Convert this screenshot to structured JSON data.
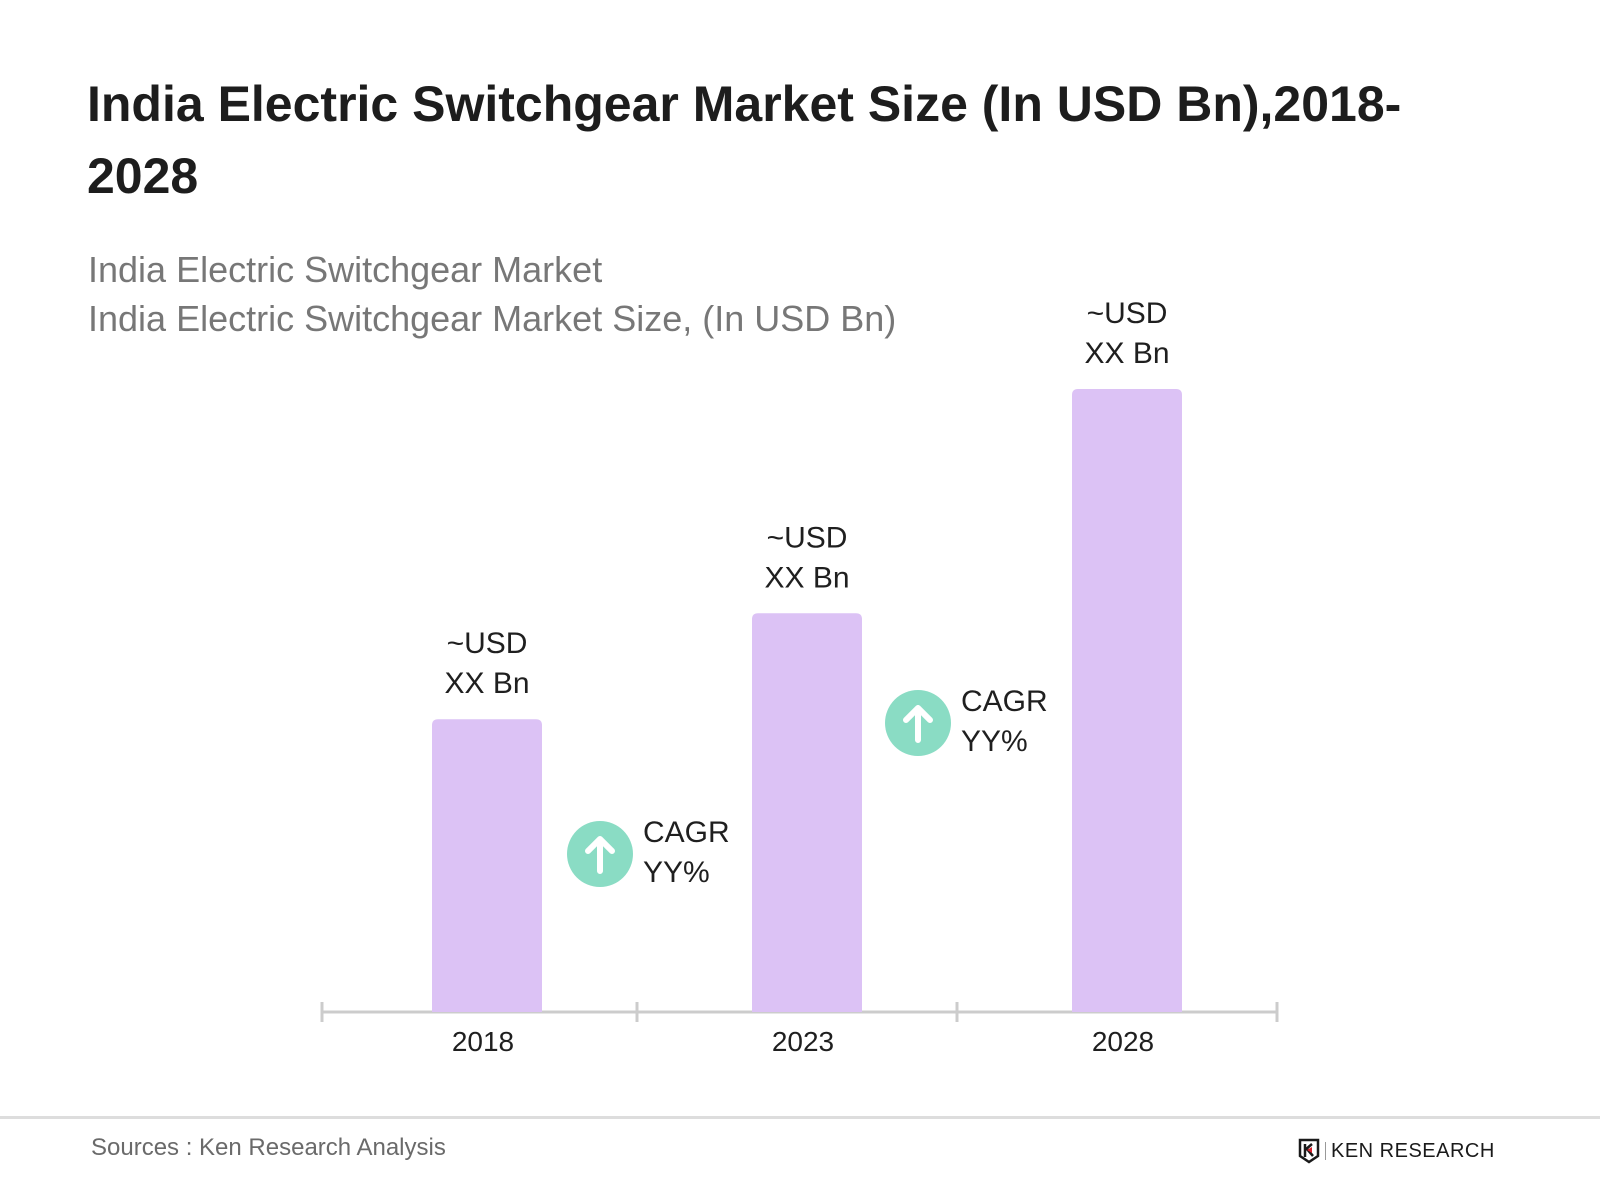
{
  "chart_data": {
    "type": "bar",
    "title": "India Electric Switchgear Market Size (In USD Bn),2018-2028",
    "subtitle_lines": [
      "India Electric Switchgear Market",
      "India Electric Switchgear Market Size, (In USD Bn)"
    ],
    "categories": [
      "2018",
      "2023",
      "2028"
    ],
    "relative_values": [
      0.47,
      0.64,
      1.0
    ],
    "data_labels": [
      [
        "~USD",
        "XX Bn"
      ],
      [
        "~USD",
        "XX Bn"
      ],
      [
        "~USD",
        "XX Bn"
      ]
    ],
    "annotations": [
      {
        "between": [
          "2018",
          "2023"
        ],
        "lines": [
          "CAGR",
          "YY%"
        ],
        "icon": "arrow-up-circle-icon"
      },
      {
        "between": [
          "2023",
          "2028"
        ],
        "lines": [
          "CAGR",
          "YY%"
        ],
        "icon": "arrow-up-circle-icon"
      }
    ],
    "xlabel": "",
    "ylabel": "",
    "grid": false,
    "colors": {
      "bar": "#dcc2f5",
      "cagr_circle": "#8adcc4",
      "axis": "#cccccc"
    }
  },
  "footer": {
    "sources": "Sources : Ken Research Analysis",
    "logo_text": "KEN RESEARCH"
  }
}
